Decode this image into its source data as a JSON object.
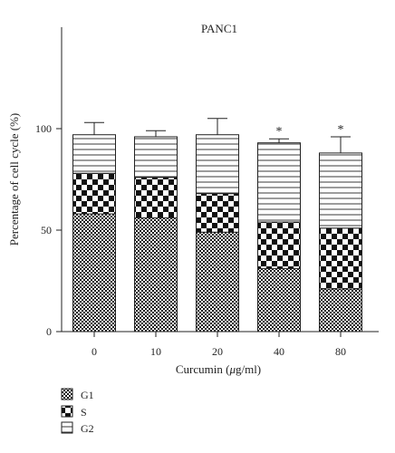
{
  "chart_data": {
    "type": "bar",
    "stacked": true,
    "title": "PANC1",
    "xlabel_prefix": "Curcumin (",
    "xlabel_unit_mu": "μ",
    "xlabel_suffix": "g/ml)",
    "ylabel": "Percentage of cell cycle (%)",
    "categories": [
      "0",
      "10",
      "20",
      "40",
      "80"
    ],
    "ylim": [
      0,
      150
    ],
    "yticks": [
      0,
      50,
      100
    ],
    "legend_position": "bottom-left",
    "series": [
      {
        "name": "G1",
        "pattern": "checker-fine",
        "values": [
          58,
          56,
          49,
          31,
          21
        ],
        "errors": [
          0,
          0,
          0,
          2,
          2
        ]
      },
      {
        "name": "S",
        "pattern": "checker-coarse",
        "values": [
          20,
          20,
          19,
          23,
          30
        ],
        "errors": [
          1.5,
          2.5,
          7,
          0,
          6
        ]
      },
      {
        "name": "G2",
        "pattern": "horizontal-lines",
        "values": [
          19,
          20,
          29,
          39,
          37
        ],
        "errors": [
          6,
          3,
          8,
          2,
          8
        ]
      }
    ],
    "annotations": [
      "",
      "",
      "",
      "*",
      "*"
    ]
  }
}
